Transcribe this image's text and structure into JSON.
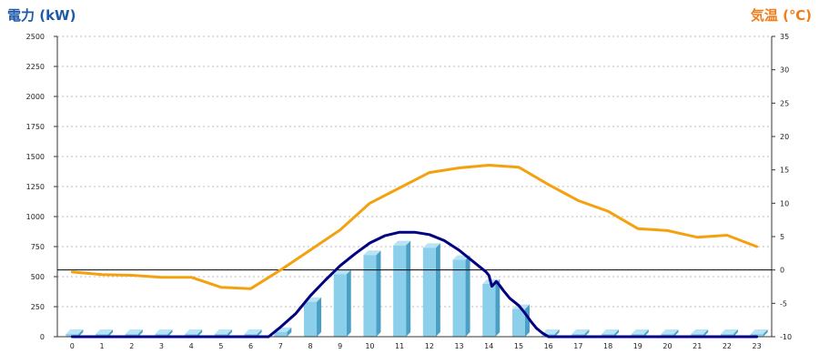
{
  "titles": {
    "left_axis": "電力 (kW)",
    "right_axis": "気温 (℃)"
  },
  "chart_data": {
    "type": "bar",
    "categories": [
      "0",
      "1",
      "2",
      "3",
      "4",
      "5",
      "6",
      "7",
      "8",
      "9",
      "10",
      "11",
      "12",
      "13",
      "14",
      "15",
      "16",
      "17",
      "18",
      "19",
      "20",
      "21",
      "22",
      "23"
    ],
    "ylim_left": [
      0,
      2500
    ],
    "yticks_left": [
      0,
      250,
      500,
      750,
      1000,
      1250,
      1500,
      1750,
      2000,
      2250,
      2500
    ],
    "ylim_right": [
      -10,
      35
    ],
    "yticks_right": [
      -10,
      -5,
      0,
      5,
      10,
      15,
      20,
      25,
      30,
      35
    ],
    "grid": true,
    "series": [
      {
        "type": "bar",
        "axis": "left",
        "values": [
          0,
          0,
          0,
          0,
          0,
          0,
          0,
          40,
          290,
          520,
          680,
          760,
          740,
          640,
          440,
          230,
          20,
          0,
          0,
          0,
          0,
          0,
          0,
          0
        ]
      },
      {
        "type": "line",
        "axis": "left",
        "x": [
          0,
          1,
          2,
          3,
          4,
          5,
          6,
          6.6,
          7,
          7.5,
          8,
          8.5,
          9,
          9.5,
          10,
          10.5,
          11,
          11.5,
          12,
          12.5,
          13,
          13.3,
          13.6,
          13.9,
          14.0,
          14.1,
          14.25,
          14.35,
          14.5,
          14.7,
          15,
          15.2,
          15.4,
          15.6,
          15.8,
          16,
          17,
          18,
          19,
          20,
          21,
          22,
          23
        ],
        "values": [
          0,
          0,
          0,
          0,
          0,
          0,
          0,
          0,
          80,
          190,
          340,
          470,
          590,
          690,
          780,
          840,
          870,
          870,
          850,
          800,
          720,
          660,
          600,
          540,
          510,
          420,
          460,
          430,
          380,
          320,
          260,
          200,
          130,
          70,
          30,
          0,
          0,
          0,
          0,
          0,
          0,
          0,
          0
        ]
      },
      {
        "type": "line",
        "axis": "right",
        "x": [
          0,
          1,
          2,
          3,
          4,
          5,
          6,
          7,
          8,
          9,
          10,
          11,
          12,
          13,
          14,
          15,
          16,
          17,
          18,
          19,
          20,
          21,
          22,
          23
        ],
        "values": [
          -0.3,
          -0.7,
          -0.8,
          -1.1,
          -1.1,
          -2.6,
          -2.8,
          0,
          3,
          6,
          10,
          12.3,
          14.6,
          15.3,
          15.7,
          15.4,
          12.8,
          10.4,
          8.8,
          6.2,
          5.9,
          4.9,
          5.2,
          3.5
        ]
      }
    ],
    "colors": {
      "bar_front": "#8ccfea",
      "bar_side": "#4a9fc4",
      "bar_top": "#b8e3f5",
      "power_line": "#000080",
      "temp_line": "#f5a10f",
      "left_title": "#1f5aa6",
      "right_title": "#f07d1a"
    }
  }
}
